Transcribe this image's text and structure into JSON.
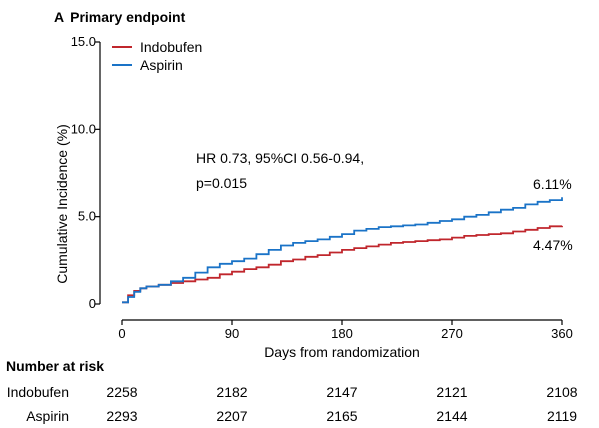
{
  "panel": {
    "letter": "A",
    "title": "Primary endpoint"
  },
  "chart_data": {
    "type": "line",
    "xlabel": "Days from randomization",
    "ylabel": "Cumulative Incidence (%)",
    "xlim": [
      0,
      360
    ],
    "ylim": [
      0,
      15
    ],
    "x_ticks": [
      0,
      90,
      180,
      270,
      360
    ],
    "y_ticks": [
      0,
      5.0,
      10.0,
      15.0
    ],
    "y_tick_labels": [
      "0",
      "5.0",
      "10.0",
      "15.0"
    ],
    "grid": false,
    "legend_position": "top-left",
    "annotation_lines": [
      "HR 0.73, 95%CI 0.56-0.94,",
      "p=0.015"
    ],
    "series": [
      {
        "name": "Indobufen",
        "color": "#c0262c",
        "end_label": "4.47%",
        "x": [
          0,
          5,
          10,
          15,
          20,
          30,
          40,
          50,
          60,
          70,
          80,
          90,
          100,
          110,
          120,
          130,
          140,
          150,
          160,
          170,
          180,
          190,
          200,
          210,
          220,
          230,
          240,
          250,
          260,
          270,
          280,
          290,
          300,
          310,
          320,
          330,
          340,
          350,
          360
        ],
        "y": [
          0.1,
          0.5,
          0.75,
          0.9,
          1.0,
          1.1,
          1.2,
          1.3,
          1.4,
          1.5,
          1.7,
          1.85,
          2.0,
          2.1,
          2.25,
          2.45,
          2.55,
          2.7,
          2.8,
          2.95,
          3.1,
          3.2,
          3.3,
          3.4,
          3.5,
          3.55,
          3.6,
          3.65,
          3.7,
          3.8,
          3.9,
          3.95,
          4.0,
          4.05,
          4.15,
          4.25,
          4.35,
          4.45,
          4.47
        ]
      },
      {
        "name": "Aspirin",
        "color": "#1a73c7",
        "end_label": "6.11%",
        "x": [
          0,
          5,
          10,
          15,
          20,
          30,
          40,
          50,
          60,
          70,
          80,
          90,
          100,
          110,
          120,
          130,
          140,
          150,
          160,
          170,
          180,
          190,
          200,
          210,
          220,
          230,
          240,
          250,
          260,
          270,
          280,
          290,
          300,
          310,
          320,
          330,
          340,
          350,
          360
        ],
        "y": [
          0.1,
          0.4,
          0.7,
          0.9,
          1.0,
          1.1,
          1.3,
          1.5,
          1.8,
          2.1,
          2.3,
          2.45,
          2.6,
          2.85,
          3.1,
          3.35,
          3.5,
          3.6,
          3.7,
          3.85,
          4.0,
          4.2,
          4.3,
          4.4,
          4.45,
          4.5,
          4.55,
          4.65,
          4.75,
          4.85,
          5.0,
          5.1,
          5.25,
          5.4,
          5.5,
          5.7,
          5.85,
          5.95,
          6.11
        ]
      }
    ]
  },
  "risk_table": {
    "title": "Number at risk",
    "rows": [
      {
        "name": "Indobufen",
        "values": [
          "2258",
          "2182",
          "2147",
          "2121",
          "2108"
        ]
      },
      {
        "name": "Aspirin",
        "values": [
          "2293",
          "2207",
          "2165",
          "2144",
          "2119"
        ]
      }
    ]
  }
}
